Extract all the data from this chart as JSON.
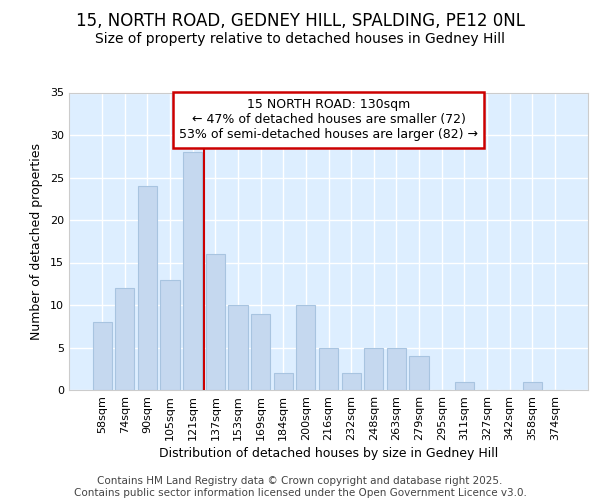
{
  "title_line1": "15, NORTH ROAD, GEDNEY HILL, SPALDING, PE12 0NL",
  "title_line2": "Size of property relative to detached houses in Gedney Hill",
  "xlabel": "Distribution of detached houses by size in Gedney Hill",
  "ylabel": "Number of detached properties",
  "categories": [
    "58sqm",
    "74sqm",
    "90sqm",
    "105sqm",
    "121sqm",
    "137sqm",
    "153sqm",
    "169sqm",
    "184sqm",
    "200sqm",
    "216sqm",
    "232sqm",
    "248sqm",
    "263sqm",
    "279sqm",
    "295sqm",
    "311sqm",
    "327sqm",
    "342sqm",
    "358sqm",
    "374sqm"
  ],
  "values": [
    8,
    12,
    24,
    13,
    28,
    16,
    10,
    9,
    2,
    10,
    5,
    2,
    5,
    5,
    4,
    0,
    1,
    0,
    0,
    1,
    0
  ],
  "bar_color": "#c5d8ef",
  "bar_edgecolor": "#a8c4e0",
  "vline_x": 4.5,
  "vline_color": "#cc0000",
  "annotation_box_text": "15 NORTH ROAD: 130sqm\n← 47% of detached houses are smaller (72)\n53% of semi-detached houses are larger (82) →",
  "annotation_box_color": "#ffffff",
  "annotation_box_edgecolor": "#cc0000",
  "ylim": [
    0,
    35
  ],
  "yticks": [
    0,
    5,
    10,
    15,
    20,
    25,
    30,
    35
  ],
  "footer_text": "Contains HM Land Registry data © Crown copyright and database right 2025.\nContains public sector information licensed under the Open Government Licence v3.0.",
  "bg_color": "#ffffff",
  "plot_bg_color": "#ddeeff",
  "grid_color": "#ffffff",
  "title_fontsize": 12,
  "subtitle_fontsize": 10,
  "axis_label_fontsize": 9,
  "tick_fontsize": 8,
  "annotation_fontsize": 9,
  "footer_fontsize": 7.5
}
